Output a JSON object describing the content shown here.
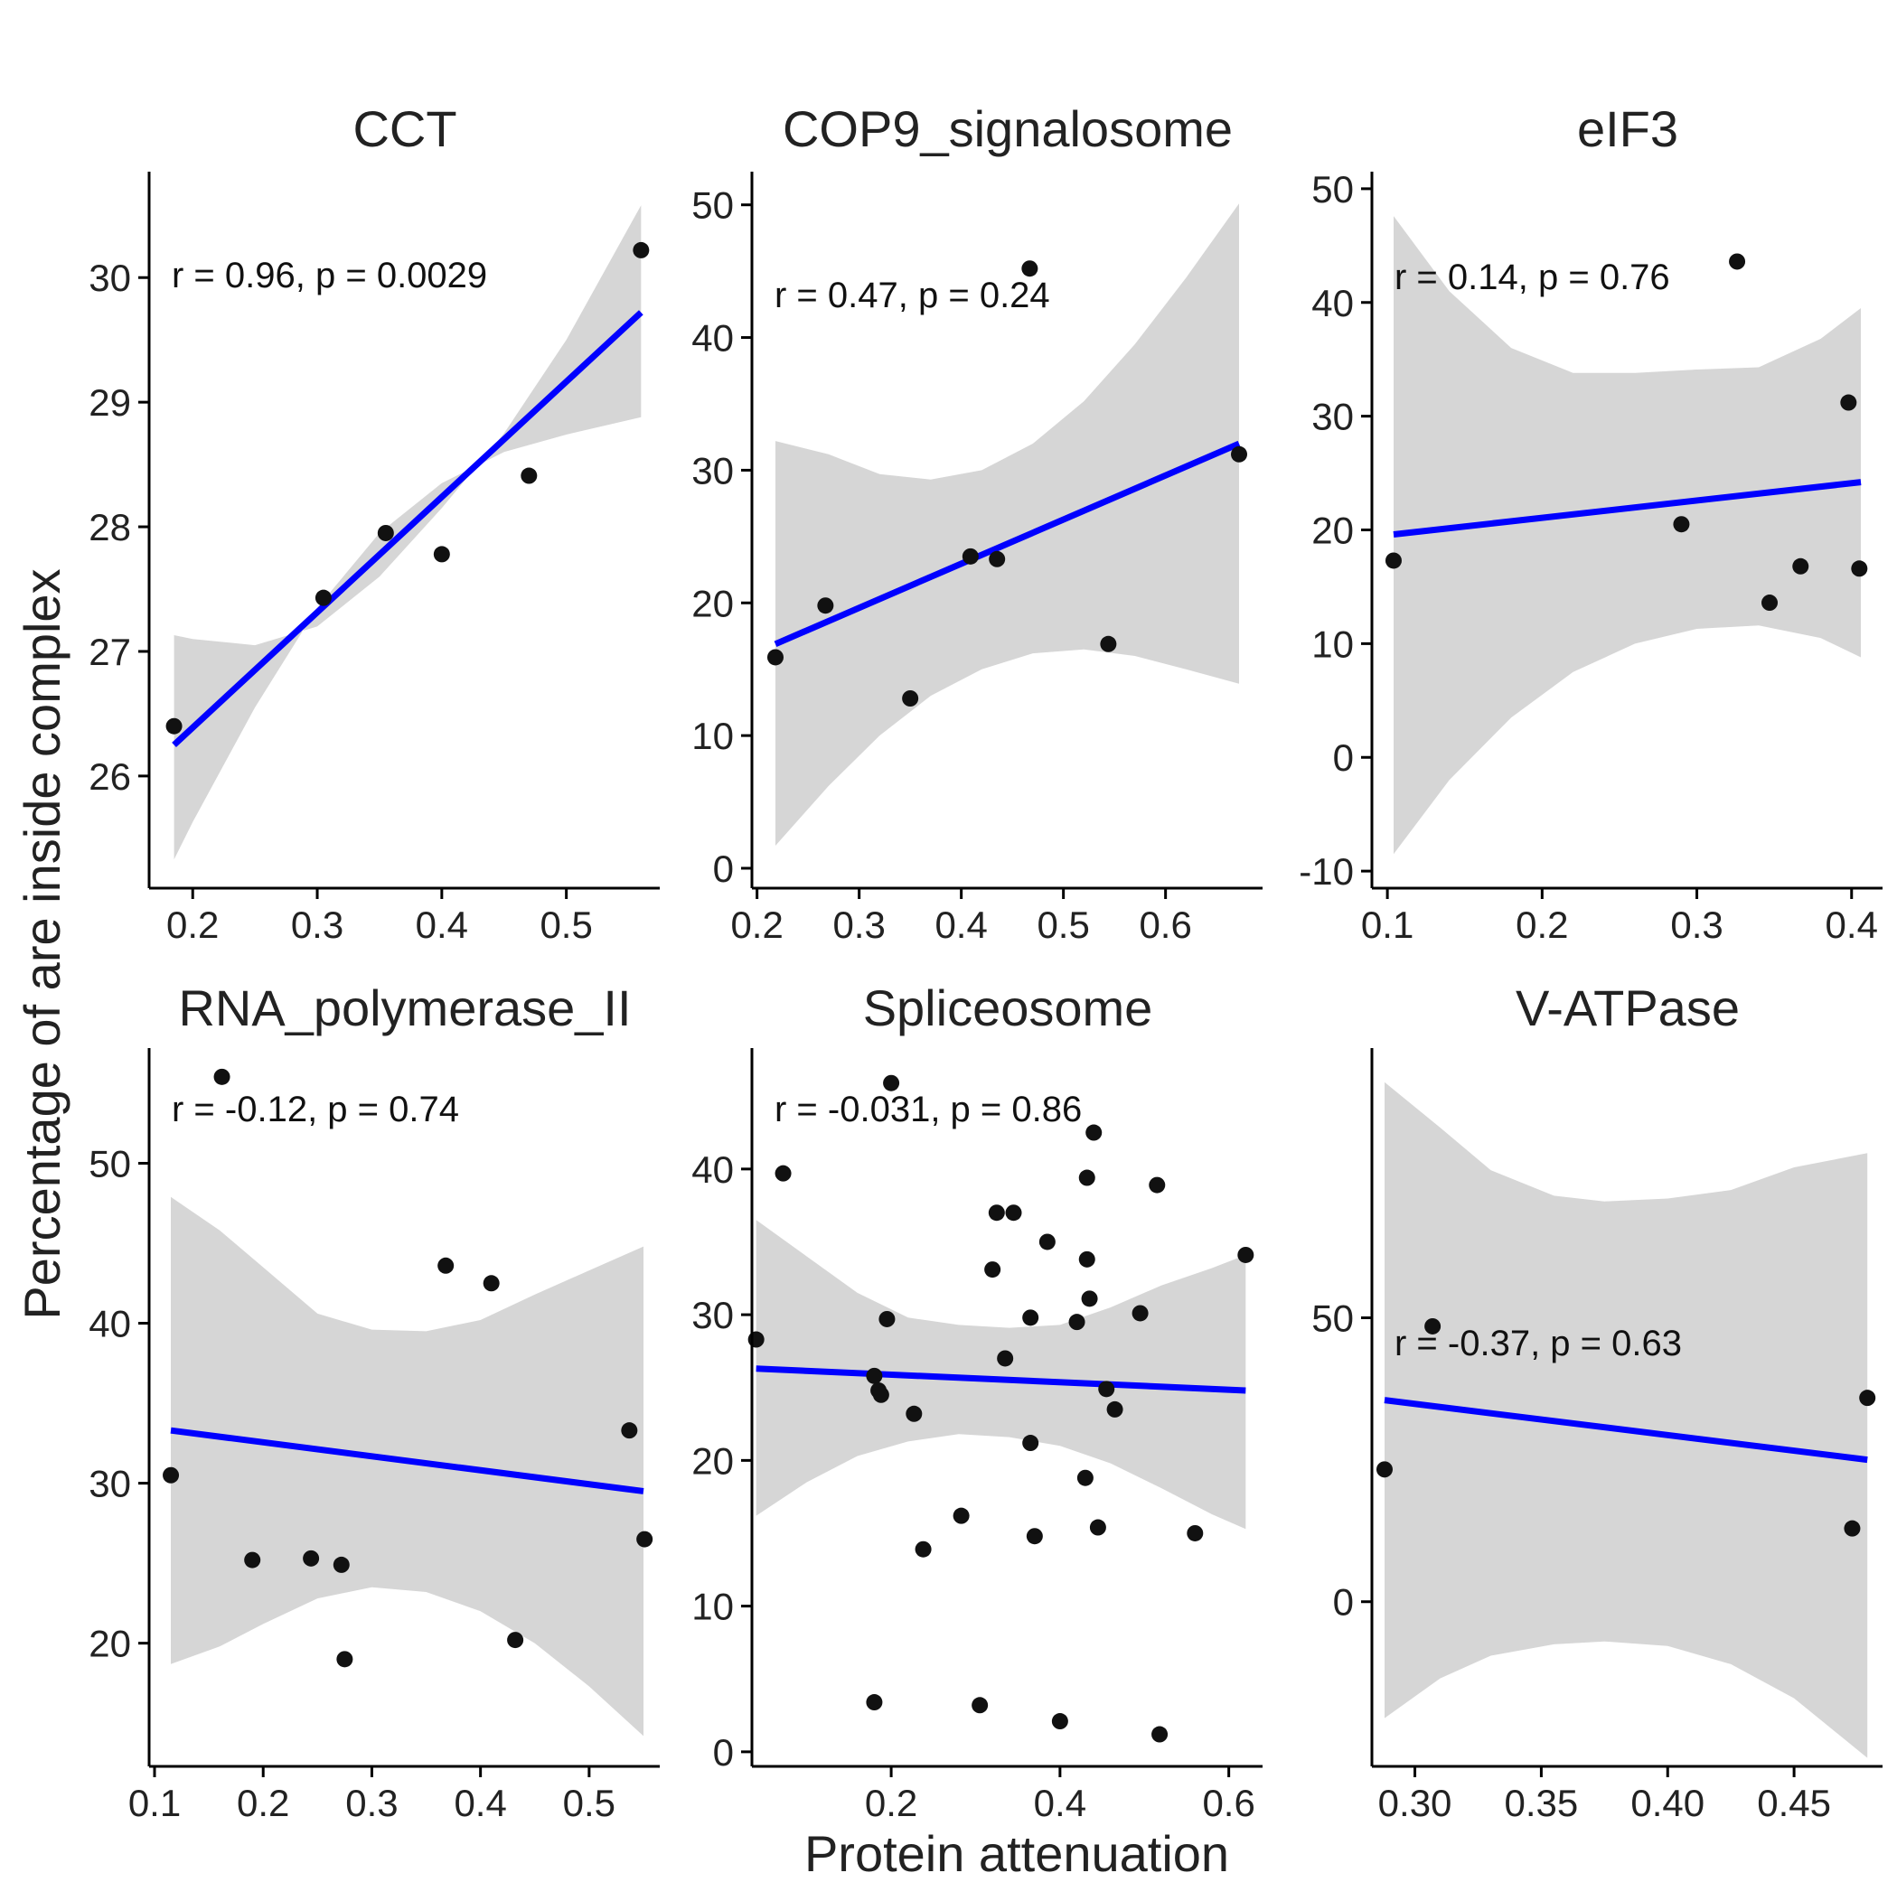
{
  "figure": {
    "xlabel": "Protein attenuation",
    "ylabel": "Percentage of are inside complex"
  },
  "colors": {
    "fit_line": "#0000ff",
    "ribbon": "#d6d6d6",
    "points": "#111111",
    "axis": "#000000"
  },
  "chart_data": [
    {
      "type": "scatter",
      "title": "CCT",
      "annotation": "r = 0.96, p = 0.0029",
      "xlim": [
        0.165,
        0.575
      ],
      "ylim": [
        25.1,
        30.85
      ],
      "xticks": [
        0.2,
        0.3,
        0.4,
        0.5
      ],
      "xtick_labels": [
        "0.2",
        "0.3",
        "0.4",
        "0.5"
      ],
      "yticks": [
        26,
        27,
        28,
        29,
        30
      ],
      "ytick_labels": [
        "26",
        "27",
        "28",
        "29",
        "30"
      ],
      "points": [
        [
          0.185,
          26.4
        ],
        [
          0.305,
          27.43
        ],
        [
          0.355,
          27.95
        ],
        [
          0.4,
          27.78
        ],
        [
          0.47,
          28.41
        ],
        [
          0.56,
          30.22
        ]
      ],
      "fit": [
        [
          0.185,
          26.25
        ],
        [
          0.56,
          29.72
        ]
      ],
      "ribbon_x": [
        0.185,
        0.2,
        0.25,
        0.3,
        0.35,
        0.4,
        0.45,
        0.5,
        0.56
      ],
      "ribbon_lower": [
        25.33,
        25.63,
        26.55,
        27.35,
        27.95,
        28.35,
        28.6,
        28.74,
        28.88
      ],
      "ribbon_upper": [
        27.13,
        27.1,
        27.05,
        27.2,
        27.6,
        28.15,
        28.75,
        29.5,
        30.58
      ]
    },
    {
      "type": "scatter",
      "title": "COP9_signalosome",
      "annotation": "r = 0.47, p = 0.24",
      "xlim": [
        0.195,
        0.695
      ],
      "ylim": [
        -1.5,
        52.5
      ],
      "xticks": [
        0.2,
        0.3,
        0.4,
        0.5,
        0.6
      ],
      "xtick_labels": [
        "0.2",
        "0.3",
        "0.4",
        "0.5",
        "0.6"
      ],
      "yticks": [
        0,
        10,
        20,
        30,
        40,
        50
      ],
      "ytick_labels": [
        "0",
        "10",
        "20",
        "30",
        "40",
        "50"
      ],
      "points": [
        [
          0.218,
          15.9
        ],
        [
          0.267,
          19.8
        ],
        [
          0.35,
          12.8
        ],
        [
          0.409,
          23.5
        ],
        [
          0.435,
          23.3
        ],
        [
          0.467,
          45.2
        ],
        [
          0.544,
          16.9
        ],
        [
          0.672,
          31.2
        ]
      ],
      "fit": [
        [
          0.218,
          16.9
        ],
        [
          0.672,
          32.0
        ]
      ],
      "ribbon_x": [
        0.218,
        0.27,
        0.32,
        0.37,
        0.42,
        0.47,
        0.52,
        0.57,
        0.62,
        0.672
      ],
      "ribbon_lower": [
        1.7,
        6.2,
        10.0,
        13.0,
        15.0,
        16.2,
        16.5,
        16.0,
        15.0,
        13.9
      ],
      "ribbon_upper": [
        32.2,
        31.2,
        29.7,
        29.3,
        30.0,
        32.0,
        35.2,
        39.5,
        44.5,
        50.1
      ]
    },
    {
      "type": "scatter",
      "title": "eIF3",
      "annotation": "r = 0.14, p = 0.76",
      "xlim": [
        0.09,
        0.42
      ],
      "ylim": [
        -11.5,
        51.5
      ],
      "xticks": [
        0.1,
        0.2,
        0.3,
        0.4
      ],
      "xtick_labels": [
        "0.1",
        "0.2",
        "0.3",
        "0.4"
      ],
      "yticks": [
        -10,
        0,
        10,
        20,
        30,
        40,
        50
      ],
      "ytick_labels": [
        "-10",
        "0",
        "10",
        "20",
        "30",
        "40",
        "50"
      ],
      "points": [
        [
          0.104,
          17.3
        ],
        [
          0.29,
          20.5
        ],
        [
          0.326,
          43.6
        ],
        [
          0.347,
          13.6
        ],
        [
          0.367,
          16.8
        ],
        [
          0.398,
          31.2
        ],
        [
          0.405,
          16.6
        ]
      ],
      "fit": [
        [
          0.104,
          19.6
        ],
        [
          0.406,
          24.2
        ]
      ],
      "ribbon_x": [
        0.104,
        0.14,
        0.18,
        0.22,
        0.26,
        0.3,
        0.34,
        0.38,
        0.406
      ],
      "ribbon_lower": [
        -8.5,
        -2.0,
        3.5,
        7.5,
        10.0,
        11.3,
        11.6,
        10.5,
        8.8
      ],
      "ribbon_upper": [
        47.6,
        41.0,
        36.0,
        33.8,
        33.8,
        34.1,
        34.3,
        36.8,
        39.5
      ]
    },
    {
      "type": "scatter",
      "title": "RNA_polymerase_II",
      "annotation": "r = -0.12, p = 0.74",
      "xlim": [
        0.095,
        0.565
      ],
      "ylim": [
        12.3,
        57.2
      ],
      "xticks": [
        0.1,
        0.2,
        0.3,
        0.4,
        0.5
      ],
      "xtick_labels": [
        "0.1",
        "0.2",
        "0.3",
        "0.4",
        "0.5"
      ],
      "yticks": [
        20,
        30,
        40,
        50
      ],
      "ytick_labels": [
        "20",
        "30",
        "40",
        "50"
      ],
      "points": [
        [
          0.115,
          30.5
        ],
        [
          0.162,
          55.4
        ],
        [
          0.19,
          25.2
        ],
        [
          0.244,
          25.3
        ],
        [
          0.272,
          24.9
        ],
        [
          0.275,
          19.0
        ],
        [
          0.368,
          43.6
        ],
        [
          0.41,
          42.5
        ],
        [
          0.432,
          20.2
        ],
        [
          0.537,
          33.3
        ],
        [
          0.551,
          26.5
        ]
      ],
      "fit": [
        [
          0.115,
          33.3
        ],
        [
          0.55,
          29.5
        ]
      ],
      "ribbon_x": [
        0.115,
        0.16,
        0.2,
        0.25,
        0.3,
        0.35,
        0.4,
        0.45,
        0.5,
        0.55
      ],
      "ribbon_lower": [
        18.7,
        19.8,
        21.2,
        22.8,
        23.5,
        23.2,
        22.0,
        20.0,
        17.3,
        14.2
      ],
      "ribbon_upper": [
        47.9,
        45.8,
        43.5,
        40.6,
        39.6,
        39.5,
        40.2,
        41.8,
        43.3,
        44.8
      ]
    },
    {
      "type": "scatter",
      "title": "Spliceosome",
      "annotation": "r = -0.031, p = 0.86",
      "xlim": [
        0.035,
        0.64
      ],
      "ylim": [
        -1.0,
        48.3
      ],
      "xticks": [
        0.2,
        0.4,
        0.6
      ],
      "xtick_labels": [
        "0.2",
        "0.4",
        "0.6"
      ],
      "yticks": [
        0,
        10,
        20,
        30,
        40
      ],
      "ytick_labels": [
        "0",
        "10",
        "20",
        "30",
        "40"
      ],
      "points": [
        [
          0.04,
          28.3
        ],
        [
          0.072,
          39.7
        ],
        [
          0.18,
          3.4
        ],
        [
          0.18,
          25.8
        ],
        [
          0.185,
          24.8
        ],
        [
          0.188,
          24.5
        ],
        [
          0.195,
          29.7
        ],
        [
          0.2,
          45.9
        ],
        [
          0.227,
          23.2
        ],
        [
          0.238,
          13.9
        ],
        [
          0.283,
          16.2
        ],
        [
          0.305,
          3.2
        ],
        [
          0.32,
          33.1
        ],
        [
          0.325,
          37.0
        ],
        [
          0.345,
          37.0
        ],
        [
          0.335,
          27.0
        ],
        [
          0.365,
          29.8
        ],
        [
          0.365,
          21.2
        ],
        [
          0.37,
          14.8
        ],
        [
          0.385,
          35.0
        ],
        [
          0.4,
          2.1
        ],
        [
          0.42,
          29.5
        ],
        [
          0.43,
          18.8
        ],
        [
          0.432,
          39.4
        ],
        [
          0.432,
          33.8
        ],
        [
          0.435,
          31.1
        ],
        [
          0.44,
          42.5
        ],
        [
          0.445,
          15.4
        ],
        [
          0.455,
          24.9
        ],
        [
          0.465,
          23.5
        ],
        [
          0.495,
          30.1
        ],
        [
          0.515,
          38.9
        ],
        [
          0.518,
          1.2
        ],
        [
          0.56,
          15.0
        ],
        [
          0.62,
          34.1
        ]
      ],
      "fit": [
        [
          0.04,
          26.3
        ],
        [
          0.62,
          24.8
        ]
      ],
      "ribbon_x": [
        0.04,
        0.1,
        0.16,
        0.22,
        0.28,
        0.34,
        0.4,
        0.46,
        0.52,
        0.58,
        0.62
      ],
      "ribbon_lower": [
        16.2,
        18.5,
        20.3,
        21.3,
        21.8,
        21.6,
        21.0,
        19.8,
        18.1,
        16.3,
        15.3
      ],
      "ribbon_upper": [
        36.5,
        34.0,
        31.5,
        29.8,
        29.3,
        29.1,
        29.3,
        30.5,
        32.0,
        33.2,
        34.1
      ]
    },
    {
      "type": "scatter",
      "title": "V-ATPase",
      "annotation": "r = -0.37, p = 0.63",
      "xlim": [
        0.283,
        0.485
      ],
      "ylim": [
        -29.0,
        97.5
      ],
      "xticks": [
        0.3,
        0.35,
        0.4,
        0.45
      ],
      "xtick_labels": [
        "0.30",
        "0.35",
        "0.40",
        "0.45"
      ],
      "yticks": [
        0,
        50
      ],
      "ytick_labels": [
        "0",
        "50"
      ],
      "points": [
        [
          0.288,
          23.3
        ],
        [
          0.307,
          48.5
        ],
        [
          0.473,
          12.9
        ],
        [
          0.479,
          35.9
        ]
      ],
      "fit": [
        [
          0.288,
          35.5
        ],
        [
          0.479,
          25.0
        ]
      ],
      "ribbon_x": [
        0.288,
        0.31,
        0.33,
        0.355,
        0.375,
        0.4,
        0.425,
        0.45,
        0.479
      ],
      "ribbon_lower": [
        -20.5,
        -13.5,
        -9.5,
        -7.5,
        -7.0,
        -7.8,
        -11.0,
        -17.0,
        -27.5
      ],
      "ribbon_upper": [
        91.5,
        83.5,
        76.0,
        71.5,
        70.5,
        71.0,
        72.5,
        76.5,
        79.0
      ]
    }
  ]
}
